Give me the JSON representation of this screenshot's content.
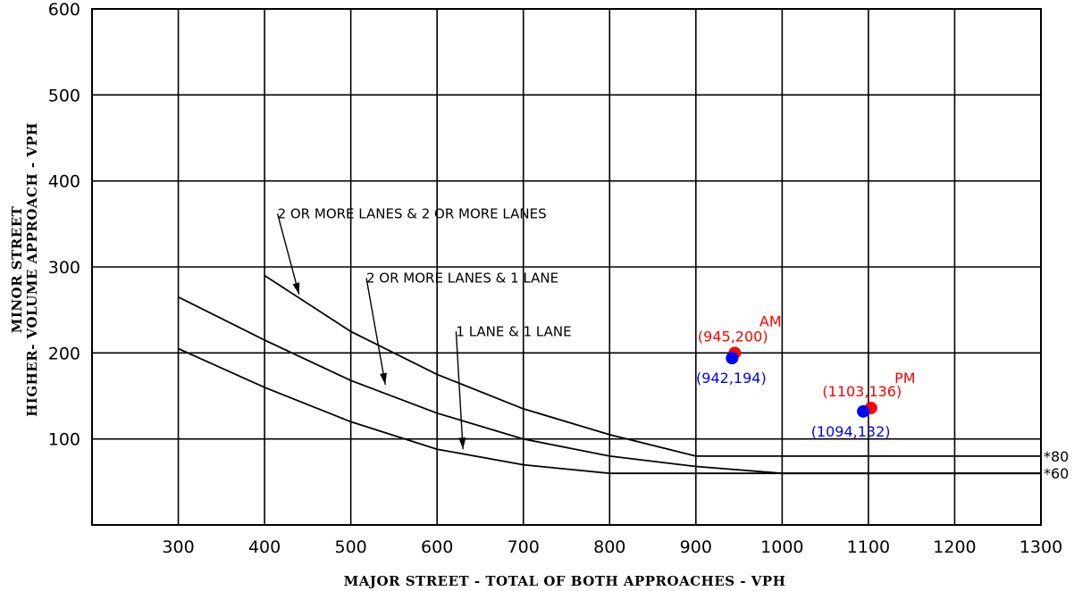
{
  "chart_data": {
    "type": "line",
    "xlabel": "MAJOR STREET - TOTAL OF BOTH APPROACHES - VPH",
    "ylabel_line1": "MINOR STREET",
    "ylabel_line2": "HIGHER- VOLUME APPROACH - VPH",
    "xlim": [
      200,
      1300
    ],
    "ylim": [
      0,
      600
    ],
    "xticks": [
      300,
      400,
      500,
      600,
      700,
      800,
      900,
      1000,
      1100,
      1200,
      1300
    ],
    "yticks": [
      100,
      200,
      300,
      400,
      500,
      600
    ],
    "grid": true,
    "series": [
      {
        "name": "2 OR MORE LANES & 2 OR MORE LANES",
        "x": [
          400,
          500,
          600,
          700,
          800,
          900,
          1300
        ],
        "y": [
          290,
          225,
          175,
          135,
          105,
          80,
          80
        ],
        "label_at": [
          415,
          362
        ],
        "arrow_tip": [
          440,
          268
        ]
      },
      {
        "name": "2 OR MORE LANES & 1 LANE",
        "x": [
          300,
          400,
          500,
          600,
          700,
          800,
          900,
          1000,
          1300
        ],
        "y": [
          265,
          215,
          168,
          130,
          100,
          80,
          68,
          60,
          60
        ],
        "label_at": [
          518,
          287
        ],
        "arrow_tip": [
          540,
          163
        ]
      },
      {
        "name": "1 LANE & 1 LANE",
        "x": [
          300,
          400,
          500,
          600,
          700,
          800,
          1300
        ],
        "y": [
          205,
          160,
          120,
          88,
          70,
          60,
          60
        ],
        "label_at": [
          622,
          225
        ],
        "arrow_tip": [
          630,
          88
        ]
      }
    ],
    "end_labels": [
      {
        "text": "*80",
        "y": 80
      },
      {
        "text": "*60",
        "y": 60
      }
    ],
    "points": [
      {
        "period": "AM",
        "label": "(945,200)",
        "x": 945,
        "y": 200,
        "color": "#ff0000"
      },
      {
        "period": "",
        "label": "(942,194)",
        "x": 942,
        "y": 194,
        "color": "#0000ff"
      },
      {
        "period": "PM",
        "label": "(1103,136)",
        "x": 1103,
        "y": 136,
        "color": "#ff0000"
      },
      {
        "period": "",
        "label": "(1094,132)",
        "x": 1094,
        "y": 132,
        "color": "#0000ff"
      }
    ]
  }
}
